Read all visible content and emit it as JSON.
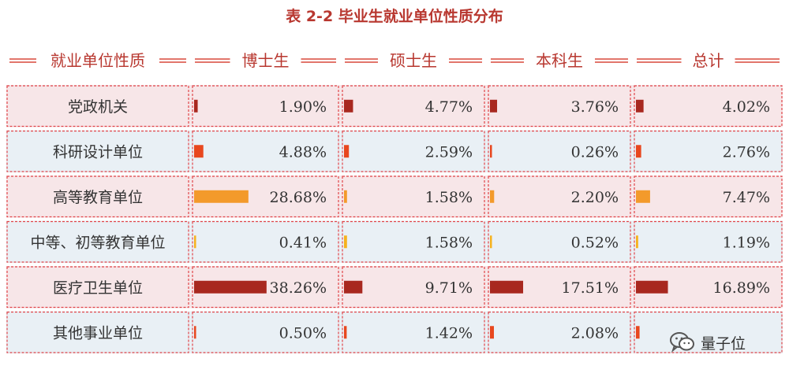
{
  "title": "表 2-2 毕业生就业单位性质分布",
  "watermark": "量子位",
  "colors": {
    "header_text": "#b8372f",
    "header_rule": "#d9483b",
    "dash_border": "#e0454a",
    "row_pink": "#f7e6e8",
    "row_blue": "#e9f0f5",
    "text": "#333333"
  },
  "chart_data": {
    "type": "table",
    "title": "表 2-2 毕业生就业单位性质分布",
    "columns": [
      "就业单位性质",
      "博士生",
      "硕士生",
      "本科生",
      "总计"
    ],
    "rows": [
      {
        "label": "党政机关",
        "values": [
          1.9,
          4.77,
          3.76,
          4.02
        ],
        "display": [
          "1.90%",
          "4.77%",
          "3.76%",
          "4.02%"
        ]
      },
      {
        "label": "科研设计单位",
        "values": [
          4.88,
          2.59,
          0.26,
          2.76
        ],
        "display": [
          "4.88%",
          "2.59%",
          "0.26%",
          "2.76%"
        ]
      },
      {
        "label": "高等教育单位",
        "values": [
          28.68,
          1.58,
          2.2,
          7.47
        ],
        "display": [
          "28.68%",
          "1.58%",
          "2.20%",
          "7.47%"
        ]
      },
      {
        "label": "中等、初等教育单位",
        "values": [
          0.41,
          1.58,
          0.52,
          1.19
        ],
        "display": [
          "0.41%",
          "1.58%",
          "0.52%",
          "1.19%"
        ]
      },
      {
        "label": "医疗卫生单位",
        "values": [
          38.26,
          9.71,
          17.51,
          16.89
        ],
        "display": [
          "38.26%",
          "9.71%",
          "17.51%",
          "16.89%"
        ]
      },
      {
        "label": "其他事业单位",
        "values": [
          0.5,
          1.42,
          2.08,
          1.91
        ],
        "display": [
          "0.50%",
          "1.42%",
          "2.08%",
          ""
        ]
      }
    ],
    "bar_colors": [
      "#a8281f",
      "#e8471e",
      "#f39a2b",
      "#f6b21e",
      "#a8281f",
      "#e8471e"
    ],
    "units": "%"
  }
}
